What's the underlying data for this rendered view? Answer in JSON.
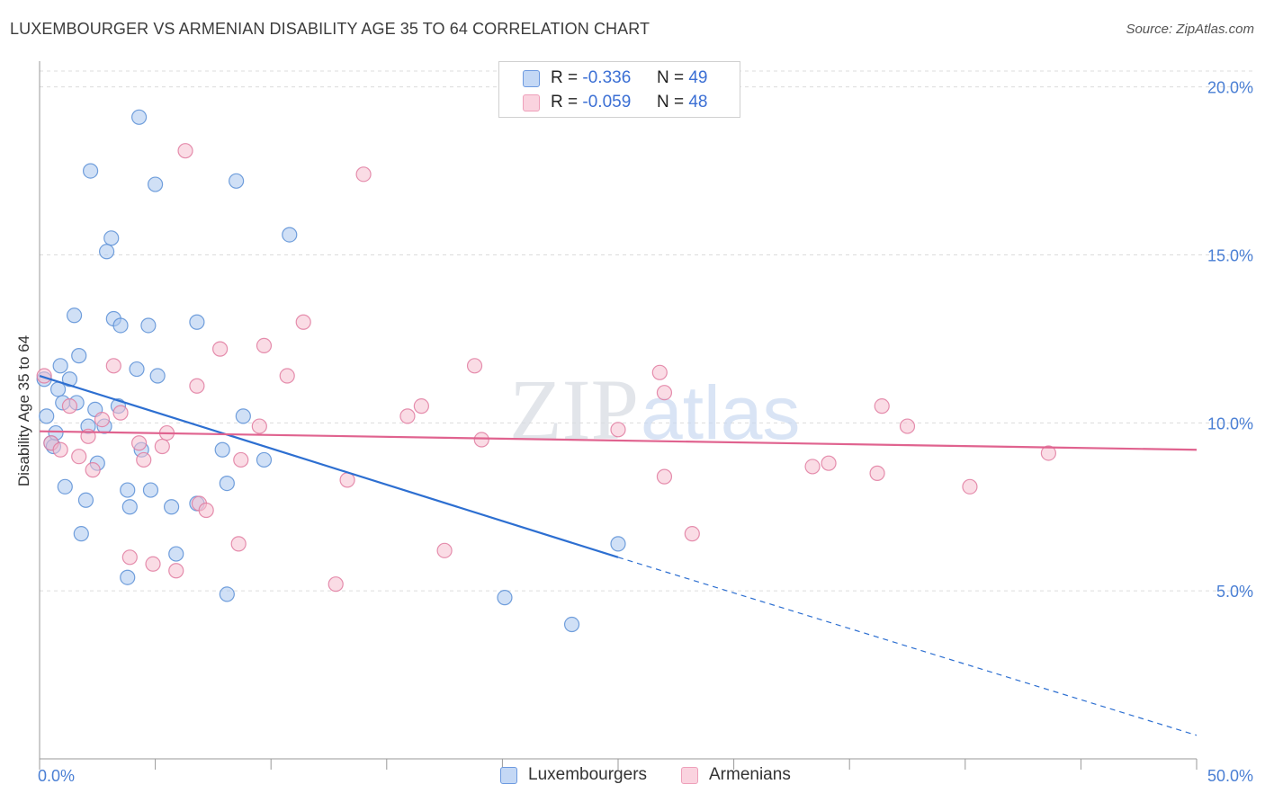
{
  "title": "LUXEMBOURGER VS ARMENIAN DISABILITY AGE 35 TO 64 CORRELATION CHART",
  "source": "Source: ZipAtlas.com",
  "watermark": {
    "part1": "ZIP",
    "part2": "atlas"
  },
  "legend": {
    "r_label": "R =",
    "n_label": "N =",
    "items": [
      {
        "r": "-0.336",
        "n": "49"
      },
      {
        "r": "-0.059",
        "n": "48"
      }
    ]
  },
  "chart_data": {
    "type": "scatter",
    "title": "LUXEMBOURGER VS ARMENIAN DISABILITY AGE 35 TO 64 CORRELATION CHART",
    "xlabel": "",
    "ylabel": "Disability Age 35 to 64",
    "xlim": [
      0,
      50
    ],
    "ylim": [
      0,
      20.5
    ],
    "x_tick_labels": [
      "0.0%",
      "50.0%"
    ],
    "y_ticks": [
      5,
      10,
      15,
      20
    ],
    "y_tick_labels": [
      "5.0%",
      "10.0%",
      "15.0%",
      "20.0%"
    ],
    "grid": true,
    "legend_position": "top-center",
    "series": [
      {
        "name": "Luxembourgers",
        "color": "#a9c6ef",
        "edge_color": "#5b8fd6",
        "line_color": "#2d6fd1",
        "points": [
          [
            0.2,
            11.3
          ],
          [
            0.3,
            10.2
          ],
          [
            0.5,
            9.4
          ],
          [
            0.6,
            9.3
          ],
          [
            0.7,
            9.7
          ],
          [
            0.8,
            11.0
          ],
          [
            0.9,
            11.7
          ],
          [
            1.0,
            10.6
          ],
          [
            1.1,
            8.1
          ],
          [
            1.3,
            11.3
          ],
          [
            1.5,
            13.2
          ],
          [
            1.6,
            10.6
          ],
          [
            1.7,
            12.0
          ],
          [
            1.8,
            6.7
          ],
          [
            2.0,
            7.7
          ],
          [
            2.1,
            9.9
          ],
          [
            2.2,
            17.5
          ],
          [
            2.4,
            10.4
          ],
          [
            2.5,
            8.8
          ],
          [
            2.8,
            9.9
          ],
          [
            2.9,
            15.1
          ],
          [
            3.1,
            15.5
          ],
          [
            3.2,
            13.1
          ],
          [
            3.4,
            10.5
          ],
          [
            3.5,
            12.9
          ],
          [
            3.8,
            5.4
          ],
          [
            3.8,
            8.0
          ],
          [
            3.9,
            7.5
          ],
          [
            4.2,
            11.6
          ],
          [
            4.3,
            19.1
          ],
          [
            4.4,
            9.2
          ],
          [
            4.7,
            12.9
          ],
          [
            4.8,
            8.0
          ],
          [
            5.0,
            17.1
          ],
          [
            5.1,
            11.4
          ],
          [
            5.7,
            7.5
          ],
          [
            5.9,
            6.1
          ],
          [
            6.8,
            13.0
          ],
          [
            6.8,
            7.6
          ],
          [
            7.9,
            9.2
          ],
          [
            8.1,
            8.2
          ],
          [
            8.1,
            4.9
          ],
          [
            8.5,
            17.2
          ],
          [
            8.8,
            10.2
          ],
          [
            9.7,
            8.9
          ],
          [
            10.8,
            15.6
          ],
          [
            20.1,
            4.8
          ],
          [
            23.0,
            4.0
          ],
          [
            25.0,
            6.4
          ]
        ],
        "trend": {
          "x0": 0,
          "y0": 11.4,
          "x1": 25.0,
          "y1": 6.0,
          "dashed_to_x": 50,
          "dashed_to_y": 0.7
        }
      },
      {
        "name": "Armenians",
        "color": "#f6bfd0",
        "edge_color": "#e07ba0",
        "line_color": "#e0638f",
        "points": [
          [
            0.2,
            11.4
          ],
          [
            0.5,
            9.4
          ],
          [
            0.9,
            9.2
          ],
          [
            1.3,
            10.5
          ],
          [
            1.7,
            9.0
          ],
          [
            2.1,
            9.6
          ],
          [
            2.3,
            8.6
          ],
          [
            2.7,
            10.1
          ],
          [
            3.2,
            11.7
          ],
          [
            3.5,
            10.3
          ],
          [
            3.9,
            6.0
          ],
          [
            4.3,
            9.4
          ],
          [
            4.5,
            8.9
          ],
          [
            4.9,
            5.8
          ],
          [
            5.3,
            9.3
          ],
          [
            5.5,
            9.7
          ],
          [
            5.9,
            5.6
          ],
          [
            6.3,
            18.1
          ],
          [
            6.8,
            11.1
          ],
          [
            6.9,
            7.6
          ],
          [
            7.2,
            7.4
          ],
          [
            7.8,
            12.2
          ],
          [
            8.6,
            6.4
          ],
          [
            8.7,
            8.9
          ],
          [
            9.5,
            9.9
          ],
          [
            9.7,
            12.3
          ],
          [
            10.7,
            11.4
          ],
          [
            11.4,
            13.0
          ],
          [
            12.8,
            5.2
          ],
          [
            13.3,
            8.3
          ],
          [
            14.0,
            17.4
          ],
          [
            15.9,
            10.2
          ],
          [
            16.5,
            10.5
          ],
          [
            17.5,
            6.2
          ],
          [
            18.8,
            11.7
          ],
          [
            19.1,
            9.5
          ],
          [
            25.0,
            9.8
          ],
          [
            27.0,
            8.4
          ],
          [
            26.8,
            11.5
          ],
          [
            27.0,
            10.9
          ],
          [
            28.2,
            6.7
          ],
          [
            33.4,
            8.7
          ],
          [
            34.1,
            8.8
          ],
          [
            36.2,
            8.5
          ],
          [
            36.4,
            10.5
          ],
          [
            37.5,
            9.9
          ],
          [
            40.2,
            8.1
          ],
          [
            43.6,
            9.1
          ]
        ],
        "trend": {
          "x0": 0,
          "y0": 9.75,
          "x1": 50,
          "y1": 9.2
        }
      }
    ]
  }
}
